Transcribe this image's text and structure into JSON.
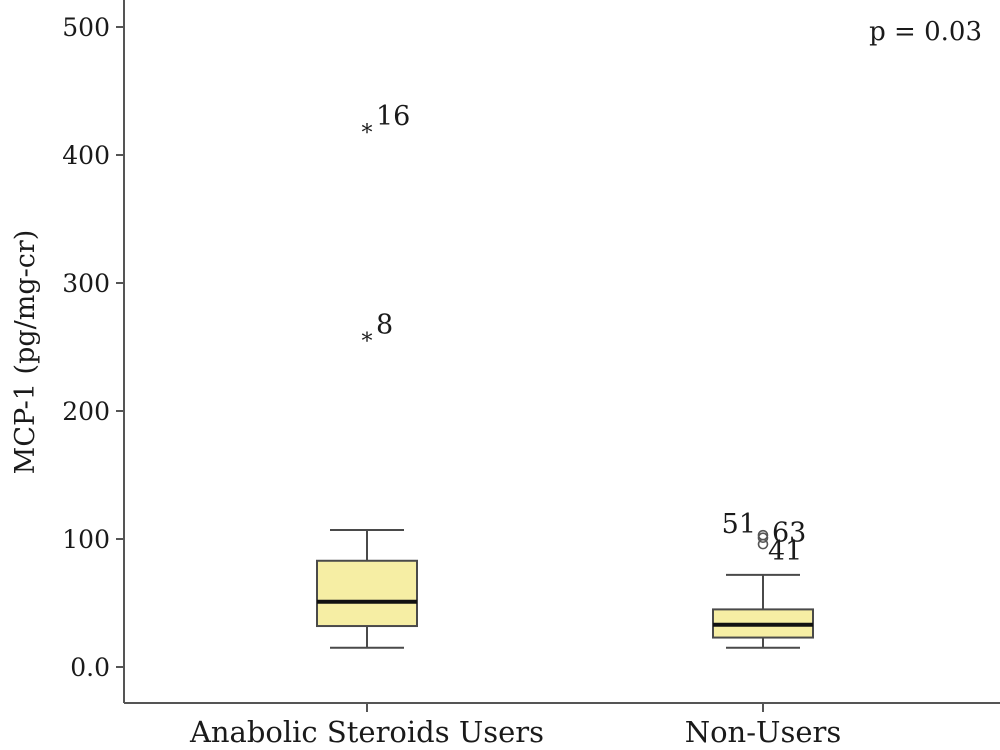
{
  "chart_data": {
    "type": "boxplot",
    "title": "",
    "xlabel": "",
    "ylabel": "MCP-1 (pg/mg-cr)",
    "ylim": [
      0,
      500
    ],
    "yticks": [
      0,
      100,
      200,
      300,
      400,
      500
    ],
    "ytick_labels": [
      "0.0",
      "100",
      "200",
      "300",
      "400",
      "500"
    ],
    "annotation": "p = 0.03",
    "box_color": "#f6eea4",
    "groups": [
      {
        "category": "Anabolic Steroids Users",
        "whisker_low": 15,
        "q1": 32,
        "median": 51,
        "q3": 83,
        "whisker_high": 107,
        "outliers": [
          {
            "value": 418,
            "label": "16",
            "marker": "star"
          },
          {
            "value": 255,
            "label": "8",
            "marker": "star"
          }
        ]
      },
      {
        "category": "Non-Users",
        "whisker_low": 15,
        "q1": 23,
        "median": 33,
        "q3": 45,
        "whisker_high": 72,
        "outliers": [
          {
            "value": 103,
            "label": "51",
            "marker": "circle"
          },
          {
            "value": 101,
            "label": "63",
            "marker": "circle"
          },
          {
            "value": 96,
            "label": "41",
            "marker": "circle"
          }
        ]
      }
    ]
  }
}
